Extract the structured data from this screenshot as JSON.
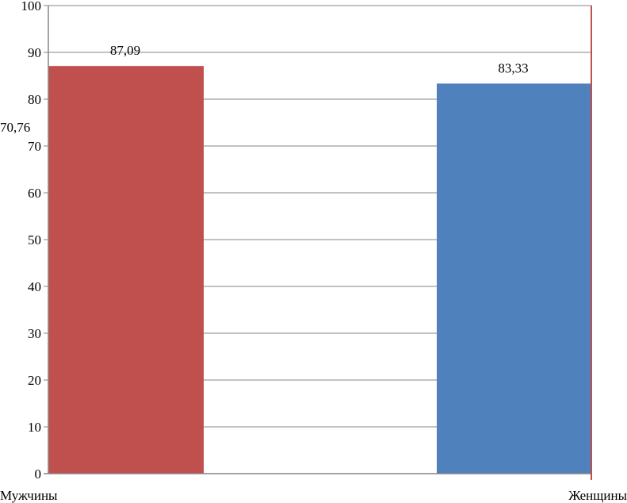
{
  "chart_data": {
    "type": "bar",
    "categories": [
      "Мужчины",
      "Женщины"
    ],
    "values": [
      87.09,
      83.33
    ],
    "data_labels": [
      "87,09",
      "83,33"
    ],
    "colors": [
      "#C0504D",
      "#4F81BD"
    ],
    "annotation": "70,76",
    "annotation_value": 70.76,
    "ylim": [
      0,
      100
    ],
    "yticks": [
      0,
      10,
      20,
      30,
      40,
      50,
      60,
      70,
      80,
      90,
      100
    ],
    "grid": true,
    "legend": "none",
    "title": "",
    "xlabel": "",
    "ylabel": ""
  }
}
